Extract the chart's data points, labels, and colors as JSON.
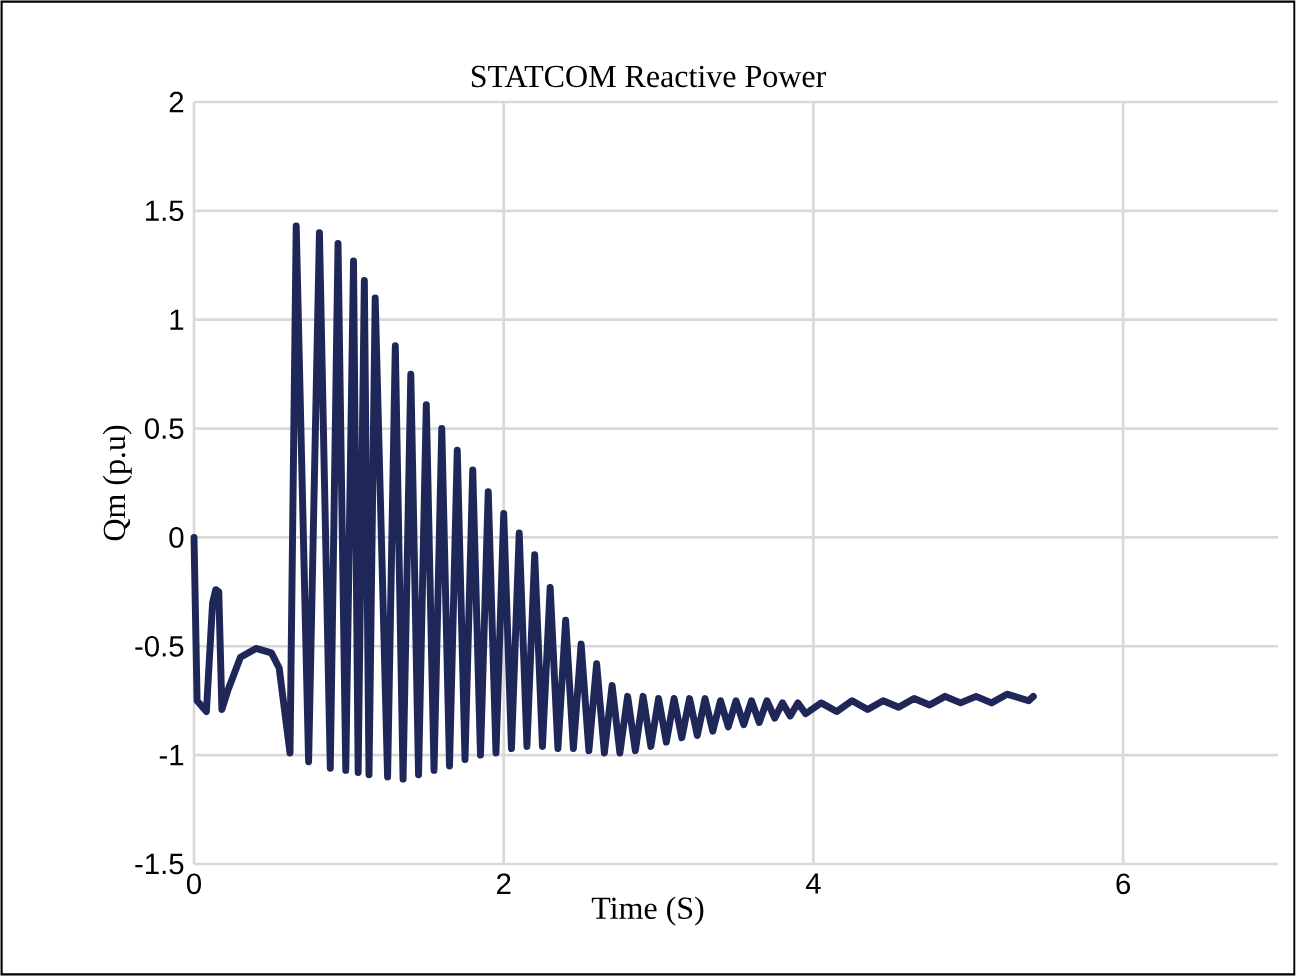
{
  "chart_data": {
    "type": "line",
    "title": "STATCOM  Reactive Power",
    "xlabel": "Time (S)",
    "ylabel": "Qm (p.u)",
    "series": [
      {
        "color": "#1f2759",
        "x": [
          0,
          0.02,
          0.08,
          0.12,
          0.14,
          0.16,
          0.18,
          0.22,
          0.3,
          0.4,
          0.5,
          0.55,
          0.62,
          0.66,
          0.74,
          0.81,
          0.88,
          0.93,
          0.98,
          1.03,
          1.06,
          1.1,
          1.13,
          1.17,
          1.25,
          1.3,
          1.35,
          1.4,
          1.45,
          1.5,
          1.55,
          1.6,
          1.65,
          1.7,
          1.75,
          1.8,
          1.85,
          1.9,
          1.95,
          2.0,
          2.05,
          2.1,
          2.15,
          2.2,
          2.25,
          2.3,
          2.35,
          2.4,
          2.45,
          2.5,
          2.55,
          2.6,
          2.65,
          2.7,
          2.75,
          2.8,
          2.85,
          2.9,
          2.95,
          3.0,
          3.05,
          3.1,
          3.15,
          3.2,
          3.25,
          3.3,
          3.35,
          3.4,
          3.45,
          3.5,
          3.55,
          3.6,
          3.65,
          3.7,
          3.75,
          3.8,
          3.85,
          3.9,
          3.95,
          4.05,
          4.15,
          4.25,
          4.35,
          4.45,
          4.55,
          4.65,
          4.75,
          4.85,
          4.95,
          5.05,
          5.15,
          5.25,
          5.39,
          5.42
        ],
        "values": [
          0.0,
          -0.75,
          -0.8,
          -0.3,
          -0.24,
          -0.25,
          -0.79,
          -0.7,
          -0.55,
          -0.51,
          -0.53,
          -0.6,
          -0.99,
          1.43,
          -1.03,
          1.4,
          -1.06,
          1.35,
          -1.07,
          1.27,
          -1.08,
          1.18,
          -1.09,
          1.1,
          -1.1,
          0.88,
          -1.11,
          0.75,
          -1.09,
          0.61,
          -1.07,
          0.5,
          -1.05,
          0.4,
          -1.02,
          0.31,
          -1.0,
          0.21,
          -0.99,
          0.11,
          -0.97,
          0.02,
          -0.96,
          -0.08,
          -0.96,
          -0.23,
          -0.97,
          -0.38,
          -0.97,
          -0.49,
          -0.98,
          -0.58,
          -0.99,
          -0.68,
          -0.99,
          -0.73,
          -0.98,
          -0.73,
          -0.96,
          -0.74,
          -0.94,
          -0.74,
          -0.92,
          -0.74,
          -0.91,
          -0.74,
          -0.89,
          -0.75,
          -0.87,
          -0.75,
          -0.86,
          -0.75,
          -0.85,
          -0.75,
          -0.83,
          -0.76,
          -0.82,
          -0.76,
          -0.81,
          -0.76,
          -0.8,
          -0.75,
          -0.79,
          -0.75,
          -0.78,
          -0.74,
          -0.77,
          -0.73,
          -0.76,
          -0.73,
          -0.76,
          -0.72,
          -0.75,
          -0.73
        ]
      }
    ],
    "xlim": [
      0,
      7
    ],
    "xticks": [
      0,
      2,
      4,
      6
    ],
    "ylim": [
      -1.5,
      2
    ],
    "yticks": [
      -1.5,
      -1,
      -0.5,
      0,
      0.5,
      1,
      1.5,
      2
    ],
    "grid": true,
    "marker": "none",
    "line_style": "solid"
  }
}
